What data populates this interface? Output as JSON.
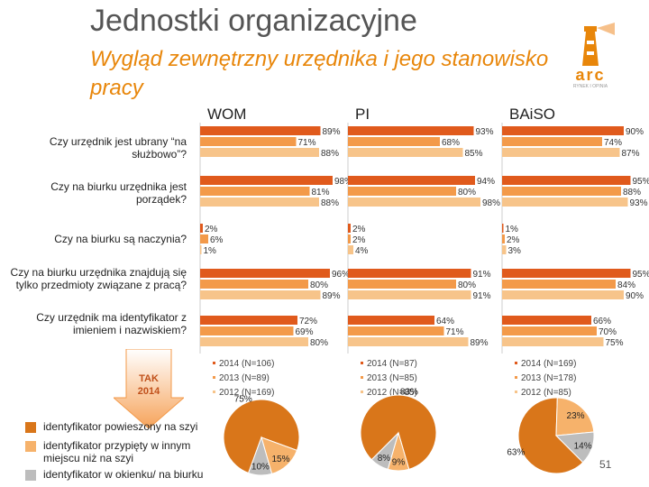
{
  "title": "Jednostki organizacyjne",
  "subtitle": "Wygląd zewnętrzny urzędnika i jego stanowisko pracy",
  "logo": {
    "text": "arc",
    "sub": "RYNEK I OPINIA"
  },
  "colors": {
    "y2014": "#e05a1c",
    "y2013": "#f39a4a",
    "y2012": "#f7c48a",
    "pie_big": "#d9761a",
    "pie_mid": "#f6b26b",
    "pie_small": "#bdbdbd"
  },
  "arrow_label_line1": "TAK",
  "arrow_label_line2": "2014",
  "pie_legend": [
    {
      "label": "identyfikator powieszony na szyi",
      "color": "#d9761a"
    },
    {
      "label": "identyfikator przypięty w innym miejscu niż na szyi",
      "color": "#f6b26b"
    },
    {
      "label": "identyfikator w okienku/ na biurku",
      "color": "#bdbdbd"
    }
  ],
  "page_number": "51",
  "chart_data": {
    "type": "bar",
    "orientation": "horizontal",
    "value_unit": "%",
    "groups": [
      "WOM",
      "PI",
      "BAiSO"
    ],
    "questions": [
      "Czy urzędnik jest ubrany “na służbowo”?",
      "Czy na biurku urzędnika jest porządek?",
      "Czy na biurku są naczynia?",
      "Czy na biurku urzędnika znajdują się tylko przedmioty związane z pracą?",
      "Czy urzędnik ma identyfikator z imieniem i nazwiskiem?"
    ],
    "series": [
      {
        "name": "2014",
        "values": {
          "WOM": [
            89,
            98,
            2,
            96,
            72
          ],
          "PI": [
            93,
            94,
            2,
            91,
            64
          ],
          "BAiSO": [
            90,
            95,
            1,
            95,
            66
          ]
        }
      },
      {
        "name": "2013",
        "values": {
          "WOM": [
            71,
            81,
            6,
            80,
            69
          ],
          "PI": [
            68,
            80,
            2,
            80,
            71
          ],
          "BAiSO": [
            74,
            88,
            2,
            84,
            70
          ]
        }
      },
      {
        "name": "2012",
        "values": {
          "WOM": [
            88,
            88,
            1,
            89,
            80
          ],
          "PI": [
            85,
            98,
            4,
            91,
            89
          ],
          "BAiSO": [
            87,
            93,
            3,
            90,
            75
          ]
        }
      }
    ],
    "legends": {
      "WOM": [
        "2014 (N=106)",
        "2013 (N=89)",
        "2012 (N=169)"
      ],
      "PI": [
        "2014 (N=87)",
        "2013 (N=85)",
        "2012 (N=85)"
      ],
      "BAiSO": [
        "2014 (N=169)",
        "2013 (N=178)",
        "2012 (N=85)"
      ]
    },
    "pies": [
      {
        "group": "WOM",
        "labels": [
          "identyfikator powieszony na szyi",
          "identyfikator przypięty w innym miejscu niż na szyi",
          "identyfikator w okienku/ na biurku"
        ],
        "values": [
          75,
          15,
          10
        ]
      },
      {
        "group": "PI",
        "labels": [
          "identyfikator powieszony na szyi",
          "identyfikator przypięty w innym miejscu niż na szyi",
          "identyfikator w okienku/ na biurku"
        ],
        "values": [
          83,
          9,
          8
        ]
      },
      {
        "group": "BAiSO",
        "labels": [
          "identyfikator powieszony na szyi",
          "identyfikator przypięty w innym miejscu niż na szyi",
          "identyfikator w okienku/ na biurku"
        ],
        "values": [
          63,
          23,
          14
        ]
      }
    ]
  }
}
